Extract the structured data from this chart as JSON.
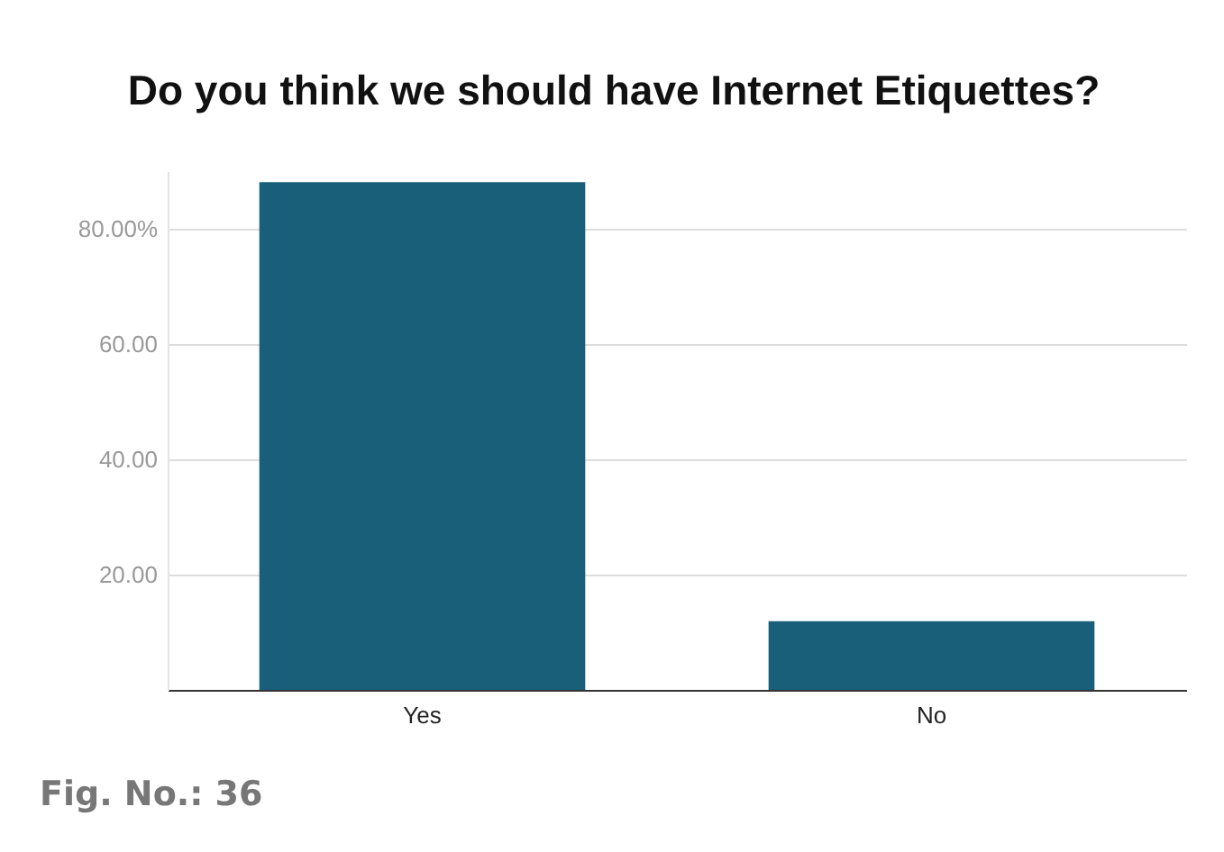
{
  "chart_data": {
    "type": "bar",
    "title": "Do you think we should have Internet Etiquettes?",
    "categories": [
      "Yes",
      "No"
    ],
    "values": [
      88.1,
      11.9
    ],
    "color": "#195f79",
    "ylim": [
      0,
      90
    ],
    "yticks": [
      {
        "value": 20,
        "label": "20.00"
      },
      {
        "value": 40,
        "label": "40.00"
      },
      {
        "value": 60,
        "label": "60.00"
      },
      {
        "value": 80,
        "label": "80.00%"
      }
    ],
    "grid": "y",
    "annotations": [
      "Fig. No.: 36"
    ]
  }
}
